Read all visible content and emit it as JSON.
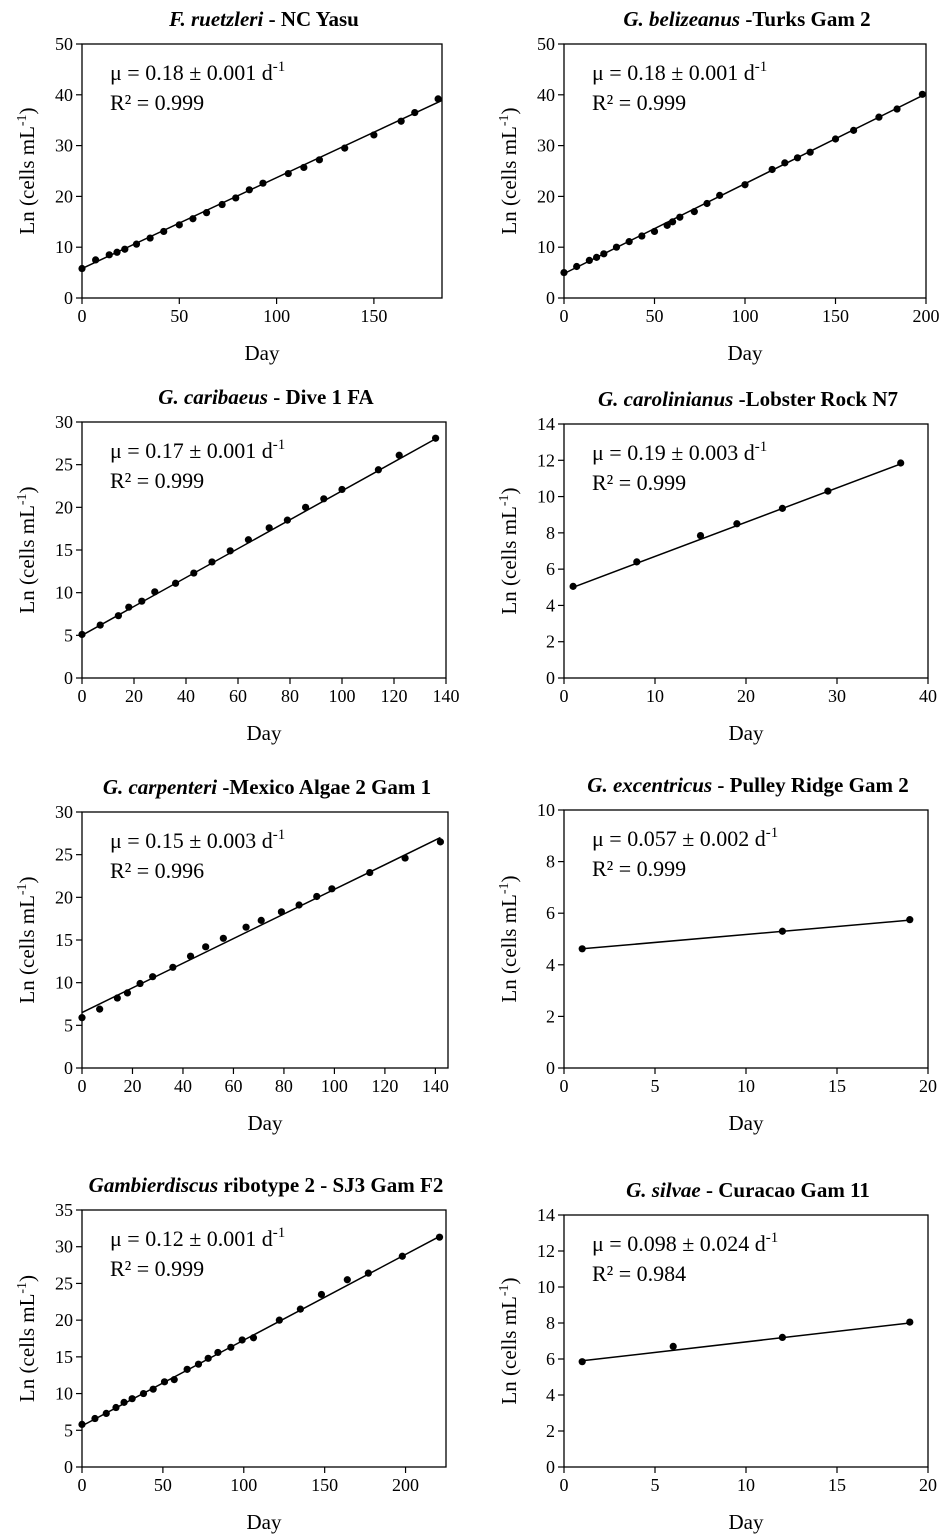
{
  "chart_data": [
    {
      "type": "scatter",
      "title_italic": "F. ruetzleri",
      "title_rest": " - NC Yasu",
      "xlabel": "Day",
      "ylabel": "Ln (cells mL",
      "ylabel_sup": "-1",
      "ylabel_end": ")",
      "xlim": [
        0,
        185
      ],
      "ylim": [
        0,
        50
      ],
      "xticks": [
        0,
        50,
        100,
        150
      ],
      "yticks": [
        0,
        10,
        20,
        30,
        40,
        50
      ],
      "mu_text": "μ = 0.18 ± 0.001 d",
      "mu_sup": "-1",
      "r2_text": "R² = 0.999",
      "fit": [
        [
          0,
          5.8
        ],
        [
          185,
          38.9
        ]
      ],
      "x": [
        0,
        7,
        14,
        18,
        22,
        28,
        35,
        42,
        50,
        57,
        64,
        72,
        79,
        86,
        93,
        106,
        114,
        122,
        135,
        150,
        164,
        171,
        183
      ],
      "y": [
        5.8,
        7.5,
        8.5,
        9,
        9.6,
        10.6,
        11.8,
        13.1,
        14.4,
        15.6,
        16.8,
        18.4,
        19.7,
        21.3,
        22.6,
        24.5,
        25.7,
        27.2,
        29.5,
        32.1,
        34.8,
        36.5,
        39.2
      ]
    },
    {
      "type": "scatter",
      "title_italic": "G. belizeanus",
      "title_rest": " -Turks Gam 2",
      "xlabel": "Day",
      "ylabel": "Ln (cells mL",
      "ylabel_sup": "-1",
      "ylabel_end": ")",
      "xlim": [
        0,
        200
      ],
      "ylim": [
        0,
        50
      ],
      "xticks": [
        0,
        50,
        100,
        150,
        200
      ],
      "yticks": [
        0,
        10,
        20,
        30,
        40,
        50
      ],
      "mu_text": "μ = 0.18 ± 0.001 d",
      "mu_sup": "-1",
      "r2_text": "R² = 0.999",
      "fit": [
        [
          0,
          4.8
        ],
        [
          200,
          40.2
        ]
      ],
      "x": [
        0,
        7,
        14,
        18,
        22,
        29,
        36,
        43,
        50,
        57,
        60,
        64,
        72,
        79,
        86,
        100,
        115,
        122,
        129,
        136,
        150,
        160,
        174,
        184,
        198
      ],
      "y": [
        5,
        6.2,
        7.4,
        8,
        8.7,
        10,
        11.1,
        12.2,
        13.1,
        14.3,
        15,
        15.9,
        17,
        18.6,
        20.2,
        22.3,
        25.3,
        26.6,
        27.6,
        28.7,
        31.3,
        33,
        35.6,
        37.2,
        40.1
      ]
    },
    {
      "type": "scatter",
      "title_italic": "G. caribaeus",
      "title_rest": " - Dive 1 FA",
      "xlabel": "Day",
      "ylabel": "Ln (cells mL",
      "ylabel_sup": "-1",
      "ylabel_end": ")",
      "xlim": [
        0,
        140
      ],
      "ylim": [
        0,
        30
      ],
      "xticks": [
        0,
        20,
        40,
        60,
        80,
        100,
        120,
        140
      ],
      "yticks": [
        0,
        5,
        10,
        15,
        20,
        25,
        30
      ],
      "mu_text": "μ = 0.17 ± 0.001 d",
      "mu_sup": "-1",
      "r2_text": "R² = 0.999",
      "fit": [
        [
          0,
          5
        ],
        [
          137,
          28.2
        ]
      ],
      "x": [
        0,
        7,
        14,
        18,
        23,
        28,
        36,
        43,
        50,
        57,
        64,
        72,
        79,
        86,
        93,
        100,
        114,
        122,
        136
      ],
      "y": [
        5.1,
        6.2,
        7.3,
        8.3,
        9,
        10.1,
        11.1,
        12.3,
        13.6,
        14.9,
        16.2,
        17.6,
        18.5,
        20,
        21,
        22.1,
        24.4,
        26.1,
        28.1
      ]
    },
    {
      "type": "scatter",
      "title_italic": "G. carolinianus",
      "title_rest": " -Lobster Rock N7",
      "xlabel": "Day",
      "ylabel": "Ln (cells mL",
      "ylabel_sup": "-1",
      "ylabel_end": ")",
      "xlim": [
        0,
        40
      ],
      "ylim": [
        0,
        14
      ],
      "xticks": [
        0,
        10,
        20,
        30,
        40
      ],
      "yticks": [
        0,
        2,
        4,
        6,
        8,
        10,
        12,
        14
      ],
      "mu_text": "μ = 0.19 ± 0.003 d",
      "mu_sup": "-1",
      "r2_text": "R² = 0.999",
      "fit": [
        [
          1,
          5
        ],
        [
          37,
          11.8
        ]
      ],
      "x": [
        1,
        8,
        15,
        19,
        24,
        29,
        37
      ],
      "y": [
        5.05,
        6.4,
        7.85,
        8.5,
        9.35,
        10.3,
        11.85
      ]
    },
    {
      "type": "scatter",
      "title_italic": "G. carpenteri",
      "title_rest": " -Mexico Algae 2 Gam 1",
      "xlabel": "Day",
      "ylabel": "Ln (cells mL",
      "ylabel_sup": "-1",
      "ylabel_end": ")",
      "xlim": [
        0,
        145
      ],
      "ylim": [
        0,
        30
      ],
      "xticks": [
        0,
        20,
        40,
        60,
        80,
        100,
        120,
        140
      ],
      "yticks": [
        0,
        5,
        10,
        15,
        20,
        25,
        30
      ],
      "mu_text": "μ = 0.15 ± 0.003 d",
      "mu_sup": "-1",
      "r2_text": "R² = 0.996",
      "fit": [
        [
          0,
          6.5
        ],
        [
          142,
          27
        ]
      ],
      "x": [
        0,
        7,
        14,
        18,
        23,
        28,
        36,
        43,
        49,
        56,
        65,
        71,
        79,
        86,
        93,
        99,
        114,
        128,
        142
      ],
      "y": [
        5.9,
        6.9,
        8.2,
        8.8,
        9.9,
        10.7,
        11.8,
        13.1,
        14.2,
        15.2,
        16.5,
        17.3,
        18.3,
        19.1,
        20.1,
        21,
        22.9,
        24.6,
        26.5
      ]
    },
    {
      "type": "scatter",
      "title_italic": "G. excentricus",
      "title_rest": " - Pulley Ridge Gam 2",
      "xlabel": "Day",
      "ylabel": "Ln (cells mL",
      "ylabel_sup": "-1",
      "ylabel_end": ")",
      "xlim": [
        0,
        20
      ],
      "ylim": [
        0,
        10
      ],
      "xticks": [
        0,
        5,
        10,
        15,
        20
      ],
      "yticks": [
        0,
        2,
        4,
        6,
        8,
        10
      ],
      "mu_text": "μ = 0.057 ± 0.002 d",
      "mu_sup": "-1",
      "r2_text": "R² = 0.999",
      "fit": [
        [
          1,
          4.62
        ],
        [
          19,
          5.73
        ]
      ],
      "x": [
        1,
        12,
        19
      ],
      "y": [
        4.62,
        5.3,
        5.75
      ]
    },
    {
      "type": "scatter",
      "title_italic": "Gambierdiscus",
      "title_rest": " ribotype 2 - SJ3 Gam F2",
      "xlabel": "Day",
      "ylabel": "Ln (cells mL",
      "ylabel_sup": "-1",
      "ylabel_end": ")",
      "xlim": [
        0,
        225
      ],
      "ylim": [
        0,
        35
      ],
      "xticks": [
        0,
        50,
        100,
        150,
        200
      ],
      "yticks": [
        0,
        5,
        10,
        15,
        20,
        25,
        30,
        35
      ],
      "mu_text": "μ = 0.12 ± 0.001 d",
      "mu_sup": "-1",
      "r2_text": "R² = 0.999",
      "fit": [
        [
          0,
          5.6
        ],
        [
          221,
          31.4
        ]
      ],
      "x": [
        0,
        8,
        15,
        21,
        26,
        31,
        38,
        44,
        51,
        57,
        65,
        72,
        78,
        84,
        92,
        99,
        106,
        122,
        135,
        148,
        164,
        177,
        198,
        221
      ],
      "y": [
        5.8,
        6.6,
        7.3,
        8.1,
        8.8,
        9.3,
        10,
        10.6,
        11.6,
        11.9,
        13.3,
        14,
        14.8,
        15.6,
        16.3,
        17.3,
        17.6,
        20,
        21.5,
        23.5,
        25.5,
        26.4,
        28.7,
        31.3
      ]
    },
    {
      "type": "scatter",
      "title_italic": "G. silvae",
      "title_rest": " - Curacao Gam 11",
      "xlabel": "Day",
      "ylabel": "Ln (cells mL",
      "ylabel_sup": "-1",
      "ylabel_end": ")",
      "xlim": [
        0,
        20
      ],
      "ylim": [
        0,
        14
      ],
      "xticks": [
        0,
        5,
        10,
        15,
        20
      ],
      "yticks": [
        0,
        2,
        4,
        6,
        8,
        10,
        12,
        14
      ],
      "mu_text": "μ = 0.098 ± 0.024 d",
      "mu_sup": "-1",
      "r2_text": "R² = 0.984",
      "fit": [
        [
          1,
          5.9
        ],
        [
          19,
          8
        ]
      ],
      "x": [
        1,
        6,
        12,
        19
      ],
      "y": [
        5.85,
        6.7,
        7.2,
        8.05
      ]
    }
  ]
}
